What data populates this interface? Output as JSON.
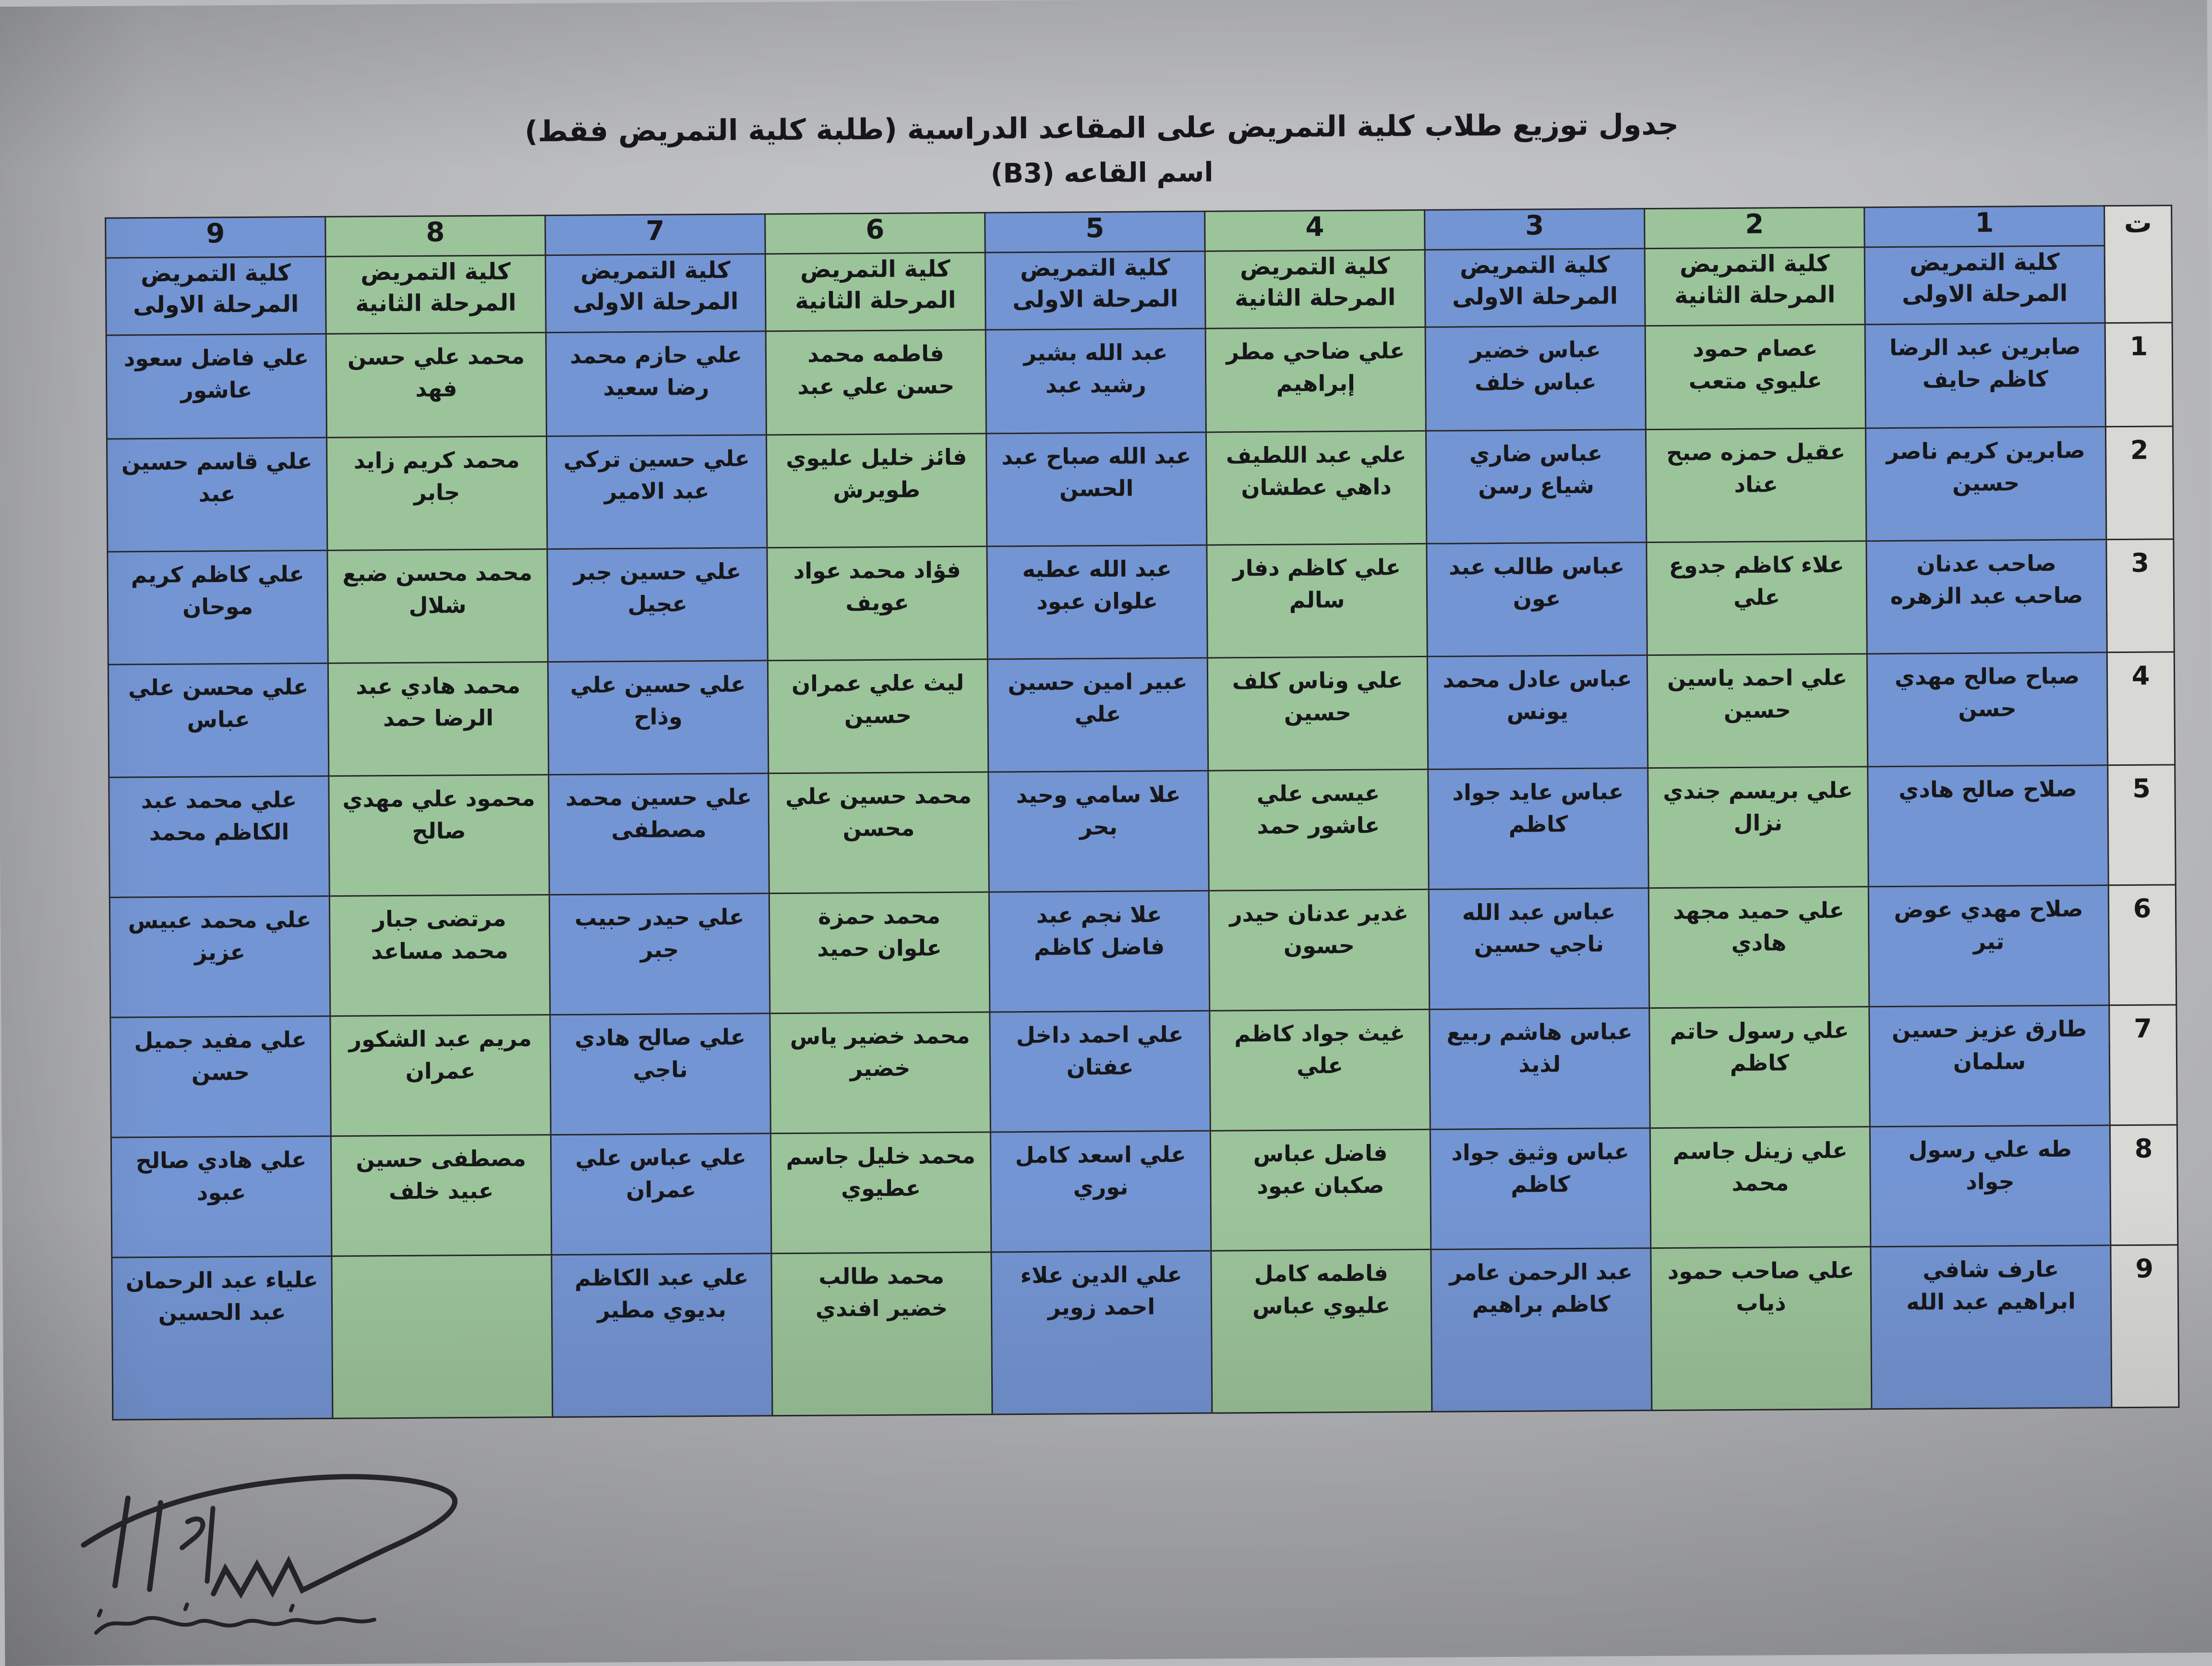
{
  "page": {
    "title_line1": "جدول توزيع طلاب كلية التمريض على المقاعد الدراسية  (طلبة كلية التمريض فقط)",
    "title_line2": "اسم القاعه (B3)"
  },
  "colors": {
    "blue_cell": "#7495d3",
    "green_cell": "#9cc49a",
    "index_cell": "#d8d8d5",
    "border": "#26262a",
    "text": "#17171a"
  },
  "table": {
    "index_header": "ت",
    "college_line1": "كلية التمريض",
    "stage_first": "المرحلة الاولى",
    "stage_second": "المرحلة الثانية",
    "row_numbers": [
      "1",
      "2",
      "3",
      "4",
      "5",
      "6",
      "7",
      "8",
      "9"
    ],
    "columns": [
      {
        "num": "1",
        "stage": "first",
        "color": "blue",
        "students": [
          "صابرين عبد الرضا كاظم حايف",
          "صابرين كريم ناصر حسين",
          "صاحب عدنان صاحب عبد الزهره",
          "صباح صالح مهدي حسن",
          "صلاح صالح هادي",
          "صلاح مهدي عوض تير",
          "طارق عزيز حسين سلمان",
          "طه علي رسول جواد",
          "عارف شافي ابراهيم عبد الله"
        ]
      },
      {
        "num": "2",
        "stage": "second",
        "color": "green",
        "students": [
          "عصام حمود عليوي متعب",
          "عقيل حمزه صبح عناد",
          "علاء كاظم جدوع علي",
          "علي احمد ياسين حسين",
          "علي بريسم جندي نزال",
          "علي حميد مجهد هادي",
          "علي رسول حاتم كاظم",
          "علي زينل جاسم محمد",
          "علي صاحب حمود ذياب"
        ]
      },
      {
        "num": "3",
        "stage": "first",
        "color": "blue",
        "students": [
          "عباس خضير عباس خلف",
          "عباس ضاري شياع رسن",
          "عباس طالب عبد عون",
          "عباس عادل محمد يونس",
          "عباس عايد جواد كاظم",
          "عباس عبد الله ناجي حسين",
          "عباس هاشم ربيع لذيذ",
          "عباس وثيق جواد كاظم",
          "عبد الرحمن عامر كاظم براهيم"
        ]
      },
      {
        "num": "4",
        "stage": "second",
        "color": "green",
        "students": [
          "علي ضاحي مطر إبراهيم",
          "علي عبد اللطيف داهي عطشان",
          "علي كاظم دفار سالم",
          "علي وناس كلف حسين",
          "عيسى علي عاشور حمد",
          "غدير عدنان حيدر حسون",
          "غيث جواد كاظم علي",
          "فاضل عباس صكبان عبود",
          "فاطمه كامل عليوي عباس"
        ]
      },
      {
        "num": "5",
        "stage": "first",
        "color": "blue",
        "students": [
          "عبد الله بشير رشيد عبد",
          "عبد الله صباح عبد الحسن",
          "عبد الله عطيه علوان عبود",
          "عبير امين حسين علي",
          "علا سامي وحيد بحر",
          "علا نجم عبد فاضل كاظم",
          "علي احمد داخل عفتان",
          "علي اسعد كامل نوري",
          "علي الدين علاء احمد زوير"
        ]
      },
      {
        "num": "6",
        "stage": "second",
        "color": "green",
        "students": [
          "فاطمه محمد حسن علي عبد",
          "فائز خليل عليوي طويرش",
          "فؤاد محمد عواد عويف",
          "ليث علي عمران حسين",
          "محمد حسين علي محسن",
          "محمد حمزة علوان حميد",
          "محمد خضير ياس خضير",
          "محمد خليل جاسم عطيوي",
          "محمد طالب خضير افندي"
        ]
      },
      {
        "num": "7",
        "stage": "first",
        "color": "blue",
        "students": [
          "علي حازم محمد رضا سعيد",
          "علي حسين تركي عبد الامير",
          "علي حسين جبر عجيل",
          "علي حسين علي وذاح",
          "علي حسين محمد مصطفى",
          "علي حيدر حبيب جبر",
          "علي صالح هادي ناجي",
          "علي عباس علي عمران",
          "علي عبد الكاظم بديوي مطير"
        ]
      },
      {
        "num": "8",
        "stage": "second",
        "color": "green",
        "students": [
          "محمد علي حسن فهد",
          "محمد كريم زايد جابر",
          "محمد محسن ضبع شلال",
          "محمد هادي عبد الرضا حمد",
          "محمود علي مهدي صالح",
          "مرتضى جبار محمد مساعد",
          "مريم عبد الشكور عمران",
          "مصطفى حسين عبيد خلف",
          ""
        ]
      },
      {
        "num": "9",
        "stage": "first",
        "color": "blue",
        "students": [
          "علي فاضل سعود عاشور",
          "علي قاسم حسين عبد",
          "علي كاظم كريم موحان",
          "علي محسن علي عباس",
          "علي محمد عبد الكاظم محمد",
          "علي محمد عبيس عزيز",
          "علي مفيد جميل حسن",
          "علي هادي صالح عبود",
          "علياء عبد الرحمان عبد الحسين"
        ]
      }
    ]
  }
}
